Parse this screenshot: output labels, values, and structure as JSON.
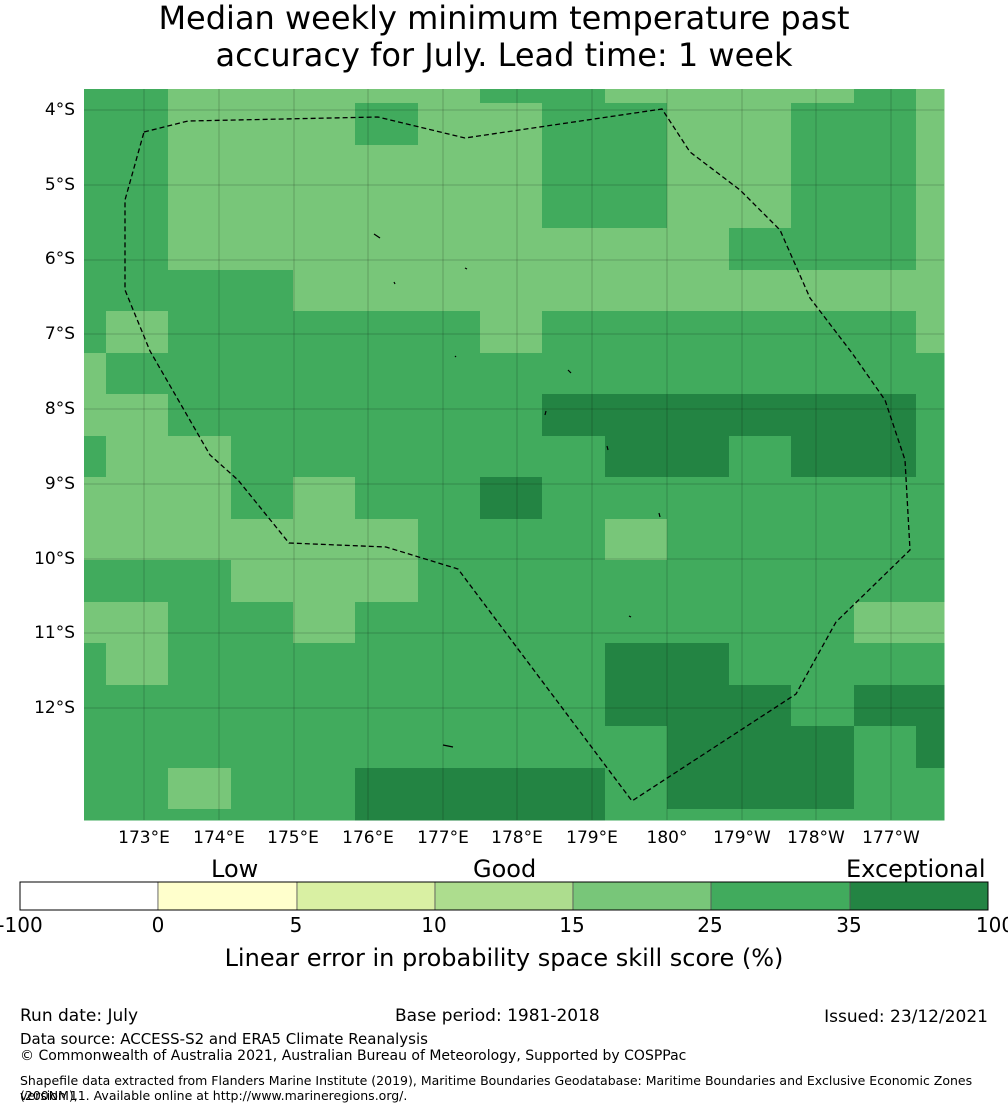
{
  "title": {
    "line1": "Median weekly minimum temperature past",
    "line2": "accuracy for July. Lead time: 1 week"
  },
  "map": {
    "lat_labels": [
      "4°S",
      "5°S",
      "6°S",
      "7°S",
      "8°S",
      "9°S",
      "10°S",
      "11°S",
      "12°S"
    ],
    "lon_labels": [
      "173°E",
      "174°E",
      "175°E",
      "176°E",
      "177°E",
      "178°E",
      "179°E",
      "180°",
      "179°W",
      "178°W",
      "177°W"
    ],
    "level_colors": [
      "#78c679",
      "#41ab5d",
      "#238443"
    ],
    "grid_levels": [
      [
        1,
        1,
        0,
        0,
        0,
        0,
        0,
        1,
        1,
        0,
        0,
        0,
        0,
        1,
        0
      ],
      [
        1,
        1,
        0,
        0,
        0,
        1,
        0,
        0,
        1,
        1,
        0,
        0,
        1,
        1,
        0
      ],
      [
        1,
        1,
        0,
        0,
        0,
        0,
        0,
        0,
        1,
        1,
        0,
        0,
        1,
        1,
        0
      ],
      [
        1,
        1,
        0,
        0,
        0,
        0,
        0,
        0,
        1,
        1,
        0,
        0,
        1,
        1,
        0
      ],
      [
        1,
        1,
        0,
        0,
        0,
        0,
        0,
        0,
        0,
        0,
        0,
        1,
        1,
        1,
        0
      ],
      [
        1,
        1,
        1,
        1,
        0,
        0,
        0,
        0,
        0,
        0,
        0,
        0,
        0,
        0,
        0
      ],
      [
        1,
        0,
        1,
        1,
        1,
        1,
        1,
        0,
        1,
        1,
        1,
        1,
        1,
        1,
        0
      ],
      [
        0,
        1,
        1,
        1,
        1,
        1,
        1,
        1,
        1,
        1,
        1,
        1,
        1,
        1,
        1
      ],
      [
        0,
        0,
        1,
        1,
        1,
        1,
        1,
        1,
        2,
        2,
        2,
        2,
        2,
        2,
        1
      ],
      [
        1,
        0,
        0,
        1,
        1,
        1,
        1,
        1,
        1,
        2,
        2,
        1,
        2,
        2,
        1
      ],
      [
        0,
        0,
        0,
        1,
        0,
        1,
        1,
        2,
        1,
        1,
        1,
        1,
        1,
        1,
        1
      ],
      [
        0,
        0,
        0,
        0,
        0,
        0,
        1,
        1,
        1,
        0,
        1,
        1,
        1,
        1,
        1
      ],
      [
        1,
        1,
        1,
        0,
        0,
        0,
        1,
        1,
        1,
        1,
        1,
        1,
        1,
        1,
        1
      ],
      [
        0,
        0,
        1,
        1,
        0,
        1,
        1,
        1,
        1,
        1,
        1,
        1,
        1,
        0,
        0
      ],
      [
        1,
        0,
        1,
        1,
        1,
        1,
        1,
        1,
        1,
        2,
        2,
        1,
        1,
        1,
        1
      ],
      [
        1,
        1,
        1,
        1,
        1,
        1,
        1,
        1,
        1,
        2,
        2,
        2,
        1,
        2,
        2
      ],
      [
        1,
        1,
        1,
        1,
        1,
        1,
        1,
        1,
        1,
        1,
        2,
        2,
        2,
        1,
        2
      ],
      [
        1,
        1,
        0,
        1,
        1,
        2,
        2,
        2,
        2,
        1,
        2,
        2,
        2,
        1,
        1
      ],
      [
        1,
        1,
        1,
        1,
        1,
        2,
        2,
        2,
        2,
        1,
        1,
        1,
        1,
        1,
        1
      ]
    ]
  },
  "colorbar": {
    "categories": [
      "Low",
      "Good",
      "Exceptional"
    ],
    "segments": [
      {
        "from": "-100",
        "to": "0",
        "color": "#ffffff"
      },
      {
        "from": "0",
        "to": "5",
        "color": "#ffffcc"
      },
      {
        "from": "5",
        "to": "10",
        "color": "#d9f0a3"
      },
      {
        "from": "10",
        "to": "15",
        "color": "#addd8e"
      },
      {
        "from": "15",
        "to": "25",
        "color": "#78c679"
      },
      {
        "from": "25",
        "to": "35",
        "color": "#41ab5d"
      },
      {
        "from": "35",
        "to": "100",
        "color": "#238443"
      }
    ],
    "ticks": [
      "-100",
      "0",
      "5",
      "10",
      "15",
      "25",
      "35",
      "100"
    ],
    "title": "Linear error in probability space skill score (%)"
  },
  "footer": {
    "run_date": "Run date: July",
    "base_period": "Base period: 1981-2018",
    "issued": "Issued: 23/12/2021",
    "data_source": "Data source: ACCESS-S2 and ERA5 Climate Reanalysis",
    "copyright": "© Commonwealth of Australia 2021, Australian Bureau of Meteorology, Supported by COSPPac",
    "shapefile_line1": "Shapefile data extracted from Flanders Marine Institute (2019), Maritime Boundaries Geodatabase: Maritime Boundaries and Exclusive Economic Zones (200NM),",
    "shapefile_line2": "version 11. Available online at http://www.marineregions.org/."
  }
}
